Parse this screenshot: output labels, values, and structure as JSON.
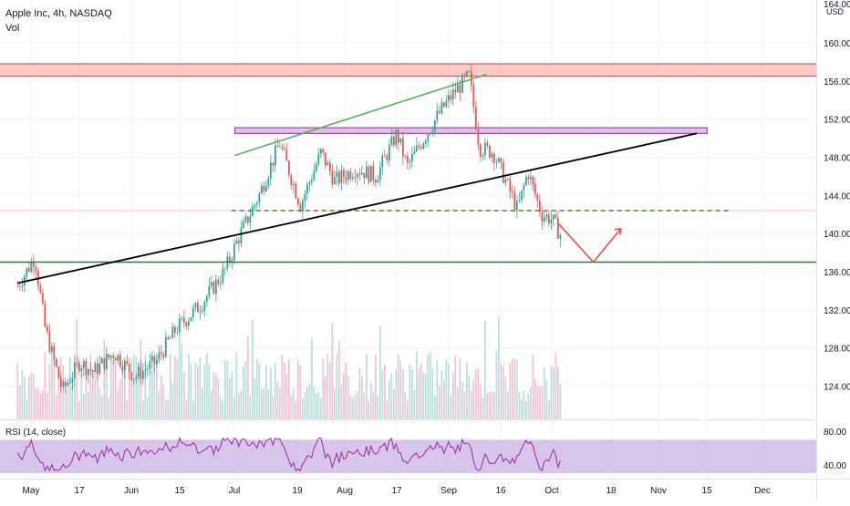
{
  "header": {
    "title": "Apple Inc, 4h, NASDAQ",
    "volume_label": "Vol",
    "currency": "USD"
  },
  "rsi_panel": {
    "label": "RSI (14, close)",
    "ticks": [
      80.0,
      40.0
    ],
    "tick_labels": [
      "80.00",
      "40.00"
    ],
    "band_color": "#c9b3e0",
    "line_color": "#9c27b0"
  },
  "colors": {
    "up": "#26a69a",
    "down": "#ef5350",
    "volume_up": "#b2dfdb",
    "volume_down": "#f8bbd0",
    "resistance_band": "#f28b82",
    "purple_band": "#ce93d8",
    "trendline_black": "#000000",
    "trendline_green": "#4caf50",
    "support_green": "#2e7d32",
    "dashed_green": "#2e7d32",
    "arrow_red": "#f44336"
  },
  "chart_data": {
    "type": "candlestick",
    "title": "Apple Inc, 4h, NASDAQ",
    "ylabel": "USD",
    "ylim": [
      120.5,
      164.5
    ],
    "y_ticks": [
      124.0,
      128.0,
      132.0,
      136.0,
      140.0,
      144.0,
      148.0,
      152.0,
      156.0,
      160.0
    ],
    "y_tick_labels": [
      "124.00",
      "128.00",
      "132.00",
      "136.00",
      "140.00",
      "144.00",
      "148.00",
      "152.00",
      "156.00",
      "160.00"
    ],
    "top_partial_label": "164.00",
    "x_ticks": [
      "May",
      "17",
      "Jun",
      "15",
      "Jul",
      "19",
      "Aug",
      "17",
      "Sep",
      "16",
      "Oct",
      "18",
      "Nov",
      "15",
      "Dec"
    ],
    "grid": true,
    "price_path": [
      {
        "date": "2021-04-29",
        "price": 134.5
      },
      {
        "date": "2021-05-04",
        "price": 137.5
      },
      {
        "date": "2021-05-07",
        "price": 130.0
      },
      {
        "date": "2021-05-12",
        "price": 123.5
      },
      {
        "date": "2021-05-17",
        "price": 126.5
      },
      {
        "date": "2021-05-21",
        "price": 125.5
      },
      {
        "date": "2021-05-27",
        "price": 127.5
      },
      {
        "date": "2021-06-02",
        "price": 125.0
      },
      {
        "date": "2021-06-08",
        "price": 126.5
      },
      {
        "date": "2021-06-14",
        "price": 130.0
      },
      {
        "date": "2021-06-21",
        "price": 132.5
      },
      {
        "date": "2021-06-28",
        "price": 136.0
      },
      {
        "date": "2021-07-02",
        "price": 139.5
      },
      {
        "date": "2021-07-08",
        "price": 144.0
      },
      {
        "date": "2021-07-14",
        "price": 149.5
      },
      {
        "date": "2021-07-20",
        "price": 143.0
      },
      {
        "date": "2021-07-26",
        "price": 148.5
      },
      {
        "date": "2021-07-30",
        "price": 145.5
      },
      {
        "date": "2021-08-05",
        "price": 146.8
      },
      {
        "date": "2021-08-11",
        "price": 146.0
      },
      {
        "date": "2021-08-17",
        "price": 150.5
      },
      {
        "date": "2021-08-20",
        "price": 147.0
      },
      {
        "date": "2021-08-24",
        "price": 149.5
      },
      {
        "date": "2021-08-30",
        "price": 153.0
      },
      {
        "date": "2021-09-03",
        "price": 155.0
      },
      {
        "date": "2021-09-07",
        "price": 156.5
      },
      {
        "date": "2021-09-10",
        "price": 149.0
      },
      {
        "date": "2021-09-14",
        "price": 148.5
      },
      {
        "date": "2021-09-17",
        "price": 146.0
      },
      {
        "date": "2021-09-21",
        "price": 142.5
      },
      {
        "date": "2021-09-24",
        "price": 146.5
      },
      {
        "date": "2021-09-28",
        "price": 142.0
      },
      {
        "date": "2021-10-01",
        "price": 141.5
      },
      {
        "date": "2021-10-04",
        "price": 139.5
      }
    ],
    "volume_note": "Vol",
    "drawings": {
      "resistance_band": {
        "from_price": 156.5,
        "to_price": 157.8
      },
      "purple_band": {
        "from_price": 150.5,
        "to_price": 151.1,
        "start": "2021-07-01",
        "end": "2021-11-15"
      },
      "black_trendline": {
        "start": {
          "date": "2021-04-29",
          "price": 134.8
        },
        "end": {
          "date": "2021-11-12",
          "price": 150.5
        }
      },
      "green_trendline": {
        "start": {
          "date": "2021-07-01",
          "price": 148.2
        },
        "end": {
          "date": "2021-09-12",
          "price": 156.7
        }
      },
      "dashed_green_line": {
        "price": 142.4,
        "start": "2021-06-30",
        "end": "2021-11-22"
      },
      "support_line": {
        "price": 137.0
      },
      "red_arrow": [
        {
          "date": "2021-10-03",
          "price": 141.0
        },
        {
          "date": "2021-10-13",
          "price": 137.0
        },
        {
          "date": "2021-10-21",
          "price": 140.5
        }
      ]
    }
  }
}
